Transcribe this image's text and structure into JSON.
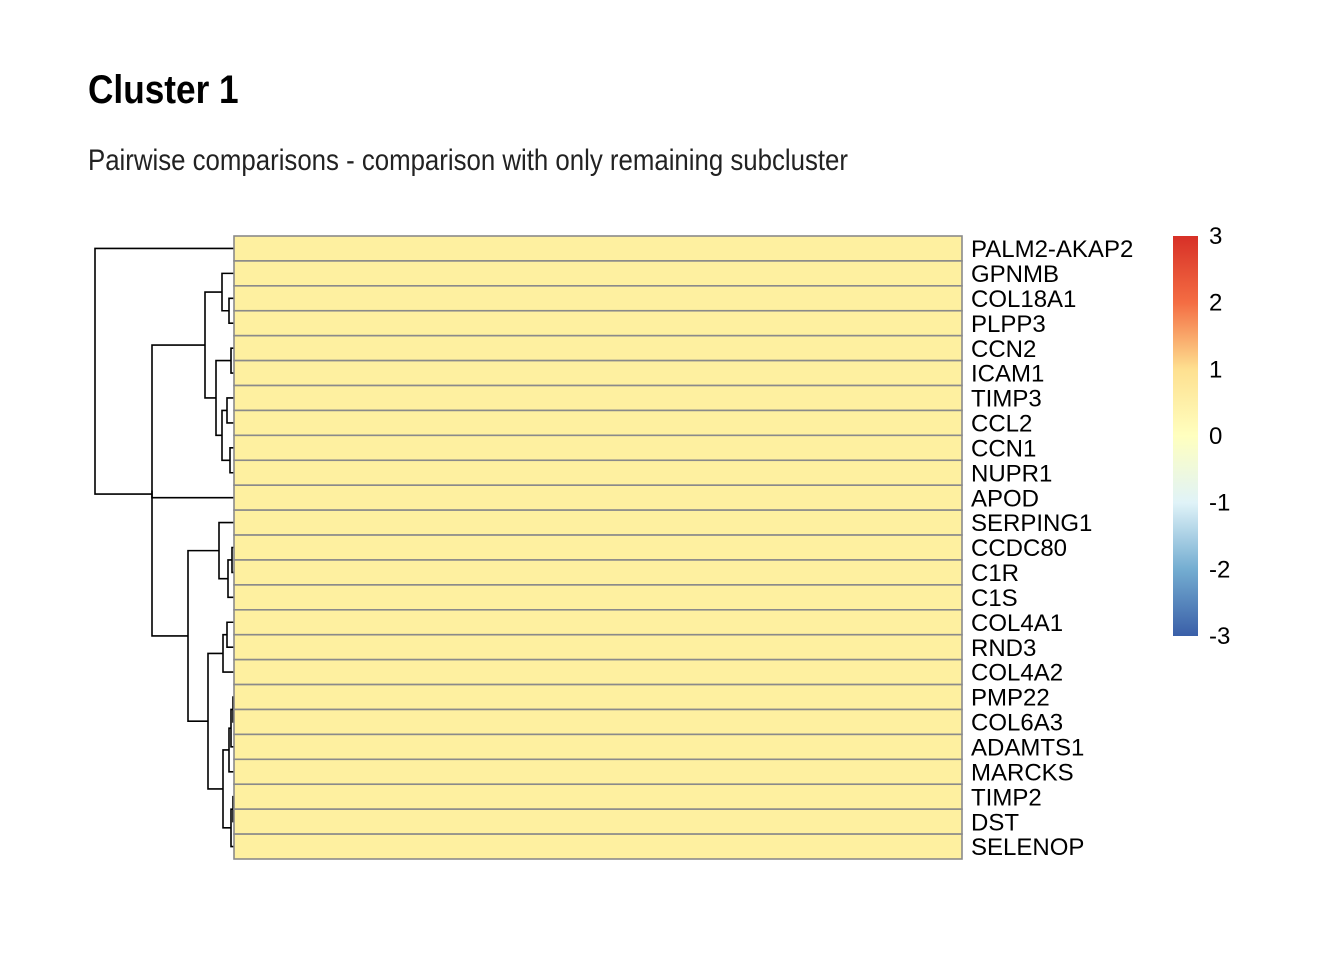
{
  "chart_data": {
    "type": "heatmap",
    "title": "Cluster 1",
    "subtitle": "Pairwise comparisons - comparison with only remaining subcluster",
    "rows": [
      "PALM2-AKAP2",
      "GPNMB",
      "COL18A1",
      "PLPP3",
      "CCN2",
      "ICAM1",
      "TIMP3",
      "CCL2",
      "CCN1",
      "NUPR1",
      "APOD",
      "SERPING1",
      "CCDC80",
      "C1R",
      "C1S",
      "COL4A1",
      "RND3",
      "COL4A2",
      "PMP22",
      "COL6A3",
      "ADAMTS1",
      "MARCKS",
      "TIMP2",
      "DST",
      "SELENOP"
    ],
    "columns": [
      ""
    ],
    "values": [
      [
        1
      ],
      [
        1
      ],
      [
        1
      ],
      [
        1
      ],
      [
        1
      ],
      [
        1
      ],
      [
        1
      ],
      [
        1
      ],
      [
        1
      ],
      [
        1
      ],
      [
        1
      ],
      [
        1
      ],
      [
        1
      ],
      [
        1
      ],
      [
        1
      ],
      [
        1
      ],
      [
        1
      ],
      [
        1
      ],
      [
        1
      ],
      [
        1
      ],
      [
        1
      ],
      [
        1
      ],
      [
        1
      ],
      [
        1
      ],
      [
        1
      ]
    ],
    "color_scale": {
      "min": -3,
      "max": 3,
      "ticks": [
        3,
        2,
        1,
        0,
        -1,
        -2,
        -3
      ],
      "colors": [
        "#3A5FA8",
        "#74ADD1",
        "#E0F3F8",
        "#FFFFBF",
        "#FEE090",
        "#F46D43",
        "#D73027"
      ]
    },
    "cell_color": "#FEF0A0",
    "cell_border_color": "#8a8a8a",
    "row_dendrogram": true,
    "legend": "right"
  }
}
